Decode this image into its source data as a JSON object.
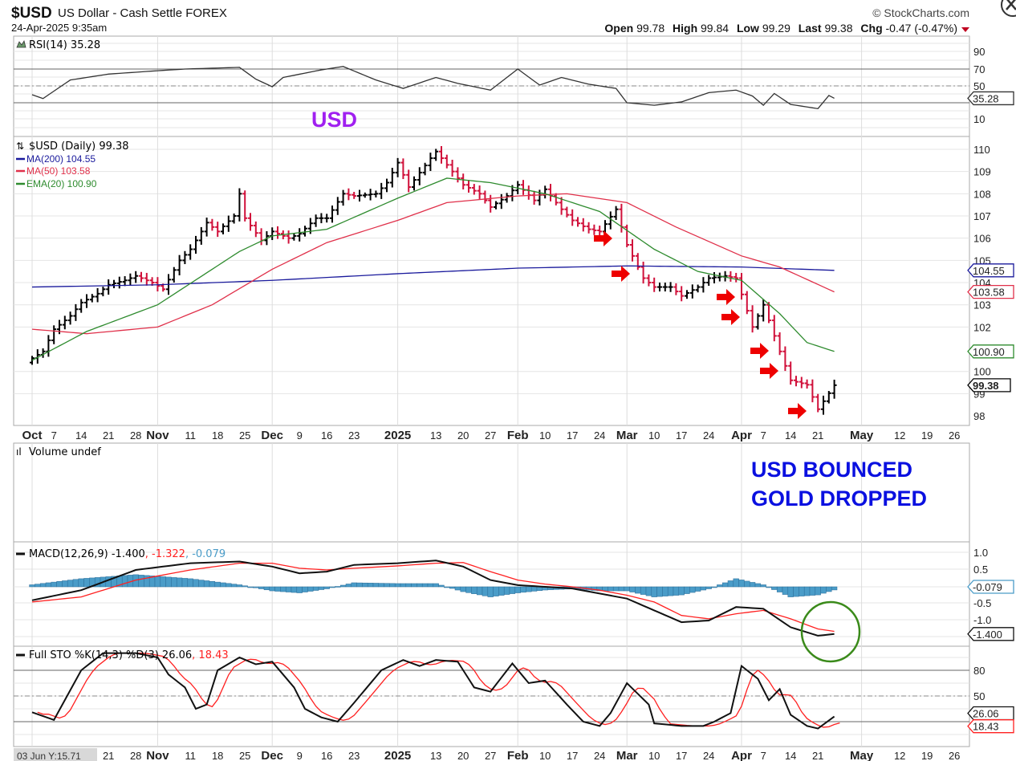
{
  "header": {
    "symbol": "$USD",
    "name": "US Dollar - Cash Settle FOREX",
    "timestamp": "24-Apr-2025 9:35am",
    "copyright": "© StockCharts.com",
    "open_label": "Open",
    "open": "99.78",
    "high_label": "High",
    "high": "99.84",
    "low_label": "Low",
    "low": "99.29",
    "last_label": "Last",
    "last": "99.38",
    "chg_label": "Chg",
    "chg": "-0.47 (-0.47%)",
    "chg_icon": "down-triangle-icon"
  },
  "colors": {
    "up": "#000000",
    "down": "#d0103a",
    "ma200": "#1a1a9c",
    "ma50": "#e0304a",
    "ema20": "#2e8b2e",
    "hist": "#4a9cc8",
    "signal": "#ff2020",
    "rsi_fill_hi": "#6a9a6a",
    "rsi_fill_lo": "#a06060",
    "annot_purple": "#a020f0",
    "annot_blue": "#0a10e0",
    "arrow": "#ee0000",
    "circle": "#3a8a1a"
  },
  "annotations": {
    "usd": "USD",
    "line1": "USD BOUNCED",
    "line2": "GOLD DROPPED"
  },
  "tooltip": "03 Jun Y:15.71",
  "chart_data": [
    {
      "type": "line",
      "title": "RSI(14) 35.28",
      "legend": "RSI(14) 35.28",
      "ylim": [
        0,
        100
      ],
      "yticks": [
        "90",
        "70",
        "50",
        "10"
      ],
      "last_badge": "35.28",
      "points": [
        [
          "2024-10-01",
          39.5
        ],
        [
          "2024-10-03",
          35
        ],
        [
          "2024-10-10",
          57
        ],
        [
          "2024-10-21",
          64
        ],
        [
          "2024-11-01",
          68
        ],
        [
          "2024-11-08",
          70
        ],
        [
          "2024-11-22",
          72
        ],
        [
          "2024-11-27",
          58
        ],
        [
          "2024-12-02",
          49
        ],
        [
          "2024-12-04",
          60
        ],
        [
          "2024-12-13",
          69
        ],
        [
          "2024-12-19",
          73
        ],
        [
          "2024-12-27",
          57
        ],
        [
          "2025-01-03",
          47
        ],
        [
          "2025-01-13",
          60
        ],
        [
          "2025-01-17",
          53
        ],
        [
          "2025-01-27",
          45
        ],
        [
          "2025-02-03",
          70
        ],
        [
          "2025-02-07",
          51
        ],
        [
          "2025-02-13",
          60
        ],
        [
          "2025-02-20",
          52
        ],
        [
          "2025-02-27",
          47
        ],
        [
          "2025-03-03",
          30
        ],
        [
          "2025-03-10",
          27
        ],
        [
          "2025-03-17",
          31
        ],
        [
          "2025-03-24",
          42
        ],
        [
          "2025-03-31",
          45
        ],
        [
          "2025-04-03",
          38
        ],
        [
          "2025-04-07",
          27
        ],
        [
          "2025-04-09",
          41
        ],
        [
          "2025-04-14",
          28
        ],
        [
          "2025-04-21",
          23
        ],
        [
          "2025-04-23",
          38.6
        ],
        [
          "2025-04-24",
          35.28
        ]
      ]
    },
    {
      "type": "ohlc",
      "title": "$USD (Daily) 99.38",
      "legend": [
        "MA(200) 104.55",
        "MA(50) 103.58",
        "EMA(20) 100.90"
      ],
      "ylim": [
        97.6,
        110.5
      ],
      "yticks": [
        "110",
        "109",
        "108",
        "107",
        "106",
        "105",
        "104",
        "103",
        "102",
        "100",
        "99",
        "98"
      ],
      "badges": {
        "ma200": "104.55",
        "ma50": "103.58",
        "ema20": "100.90",
        "last": "99.38"
      },
      "close": [
        [
          "2024-10-01",
          100.6
        ],
        [
          "2024-10-03",
          100.9
        ],
        [
          "2024-10-07",
          101.9
        ],
        [
          "2024-10-10",
          102.5
        ],
        [
          "2024-10-14",
          103.1
        ],
        [
          "2024-10-17",
          103.5
        ],
        [
          "2024-10-21",
          103.9
        ],
        [
          "2024-10-24",
          104.1
        ],
        [
          "2024-10-28",
          104.3
        ],
        [
          "2024-10-31",
          104.0
        ],
        [
          "2024-11-04",
          103.7
        ],
        [
          "2024-11-07",
          105.0
        ],
        [
          "2024-11-11",
          105.5
        ],
        [
          "2024-11-14",
          106.7
        ],
        [
          "2024-11-18",
          106.3
        ],
        [
          "2024-11-21",
          107.0
        ],
        [
          "2024-11-22",
          108.0
        ],
        [
          "2024-11-25",
          106.9
        ],
        [
          "2024-11-28",
          105.9
        ],
        [
          "2024-12-02",
          106.3
        ],
        [
          "2024-12-05",
          106.0
        ],
        [
          "2024-12-09",
          106.2
        ],
        [
          "2024-12-12",
          106.9
        ],
        [
          "2024-12-16",
          106.9
        ],
        [
          "2024-12-19",
          108.0
        ],
        [
          "2024-12-23",
          107.9
        ],
        [
          "2024-12-27",
          108.0
        ],
        [
          "2024-12-31",
          108.5
        ],
        [
          "2025-01-02",
          109.4
        ],
        [
          "2025-01-06",
          108.3
        ],
        [
          "2025-01-10",
          109.6
        ],
        [
          "2025-01-13",
          109.9
        ],
        [
          "2025-01-16",
          109.0
        ],
        [
          "2025-01-20",
          108.4
        ],
        [
          "2025-01-23",
          108.0
        ],
        [
          "2025-01-27",
          107.4
        ],
        [
          "2025-01-30",
          107.9
        ],
        [
          "2025-02-03",
          108.4
        ],
        [
          "2025-02-06",
          107.7
        ],
        [
          "2025-02-10",
          108.2
        ],
        [
          "2025-02-13",
          107.3
        ],
        [
          "2025-02-17",
          106.8
        ],
        [
          "2025-02-20",
          106.4
        ],
        [
          "2025-02-24",
          106.3
        ],
        [
          "2025-02-27",
          107.3
        ],
        [
          "2025-03-03",
          105.7
        ],
        [
          "2025-03-06",
          104.2
        ],
        [
          "2025-03-10",
          103.8
        ],
        [
          "2025-03-13",
          103.8
        ],
        [
          "2025-03-17",
          103.4
        ],
        [
          "2025-03-20",
          103.8
        ],
        [
          "2025-03-24",
          104.2
        ],
        [
          "2025-03-27",
          104.3
        ],
        [
          "2025-03-31",
          104.2
        ],
        [
          "2025-04-03",
          102.0
        ],
        [
          "2025-04-07",
          103.0
        ],
        [
          "2025-04-10",
          100.9
        ],
        [
          "2025-04-14",
          99.6
        ],
        [
          "2025-04-17",
          99.4
        ],
        [
          "2025-04-21",
          98.3
        ],
        [
          "2025-04-24",
          99.38
        ]
      ],
      "ma200": [
        [
          "2024-10-01",
          103.8
        ],
        [
          "2024-11-01",
          103.9
        ],
        [
          "2024-12-02",
          104.1
        ],
        [
          "2025-01-02",
          104.4
        ],
        [
          "2025-02-03",
          104.65
        ],
        [
          "2025-03-03",
          104.75
        ],
        [
          "2025-04-01",
          104.7
        ],
        [
          "2025-04-24",
          104.55
        ]
      ],
      "ma50": [
        [
          "2024-10-01",
          101.9
        ],
        [
          "2024-10-15",
          101.7
        ],
        [
          "2024-11-01",
          102.0
        ],
        [
          "2024-11-15",
          103.0
        ],
        [
          "2024-12-02",
          104.6
        ],
        [
          "2024-12-16",
          105.8
        ],
        [
          "2025-01-02",
          106.8
        ],
        [
          "2025-01-15",
          107.6
        ],
        [
          "2025-02-03",
          107.9
        ],
        [
          "2025-02-14",
          108.0
        ],
        [
          "2025-03-03",
          107.6
        ],
        [
          "2025-03-14",
          106.5
        ],
        [
          "2025-04-01",
          105.2
        ],
        [
          "2025-04-10",
          104.7
        ],
        [
          "2025-04-24",
          103.58
        ]
      ],
      "ema20": [
        [
          "2024-10-01",
          100.5
        ],
        [
          "2024-10-15",
          101.8
        ],
        [
          "2024-11-01",
          103.0
        ],
        [
          "2024-11-08",
          103.8
        ],
        [
          "2024-11-22",
          105.4
        ],
        [
          "2024-12-02",
          106.1
        ],
        [
          "2024-12-16",
          106.4
        ],
        [
          "2025-01-02",
          107.8
        ],
        [
          "2025-01-15",
          108.7
        ],
        [
          "2025-01-27",
          108.5
        ],
        [
          "2025-02-10",
          108.0
        ],
        [
          "2025-02-24",
          107.2
        ],
        [
          "2025-03-10",
          105.5
        ],
        [
          "2025-03-20",
          104.5
        ],
        [
          "2025-04-01",
          104.1
        ],
        [
          "2025-04-10",
          102.6
        ],
        [
          "2025-04-17",
          101.3
        ],
        [
          "2025-04-24",
          100.9
        ]
      ]
    },
    {
      "type": "bar",
      "title": "Volume undef",
      "legend": "Volume undef"
    },
    {
      "type": "line",
      "title": "MACD(12,26,9)",
      "legend": [
        "MACD(12,26,9) -1.400",
        ", -1.322",
        ", -0.079"
      ],
      "ylim": [
        -1.6,
        1.2
      ],
      "yticks": [
        "1.0",
        "0.5",
        "-0.5",
        "-1.0"
      ],
      "badges": {
        "hist": "-0.079",
        "macd": "-1.400"
      },
      "macd": [
        [
          "2024-10-01",
          -0.4
        ],
        [
          "2024-10-14",
          -0.1
        ],
        [
          "2024-10-28",
          0.5
        ],
        [
          "2024-11-11",
          0.7
        ],
        [
          "2024-11-22",
          0.75
        ],
        [
          "2024-12-02",
          0.6
        ],
        [
          "2024-12-09",
          0.4
        ],
        [
          "2024-12-16",
          0.45
        ],
        [
          "2024-12-23",
          0.65
        ],
        [
          "2025-01-02",
          0.7
        ],
        [
          "2025-01-13",
          0.78
        ],
        [
          "2025-01-20",
          0.6
        ],
        [
          "2025-01-27",
          0.2
        ],
        [
          "2025-02-03",
          0.05
        ],
        [
          "2025-02-10",
          0.0
        ],
        [
          "2025-02-17",
          -0.05
        ],
        [
          "2025-02-24",
          -0.2
        ],
        [
          "2025-03-03",
          -0.35
        ],
        [
          "2025-03-10",
          -0.7
        ],
        [
          "2025-03-17",
          -1.05
        ],
        [
          "2025-03-24",
          -1.0
        ],
        [
          "2025-03-31",
          -0.6
        ],
        [
          "2025-04-07",
          -0.65
        ],
        [
          "2025-04-14",
          -1.2
        ],
        [
          "2025-04-21",
          -1.45
        ],
        [
          "2025-04-24",
          -1.4
        ]
      ],
      "signal": [
        [
          "2024-10-01",
          -0.45
        ],
        [
          "2024-10-14",
          -0.3
        ],
        [
          "2024-10-28",
          0.2
        ],
        [
          "2024-11-11",
          0.5
        ],
        [
          "2024-11-22",
          0.7
        ],
        [
          "2024-12-02",
          0.7
        ],
        [
          "2024-12-09",
          0.55
        ],
        [
          "2024-12-16",
          0.5
        ],
        [
          "2024-12-23",
          0.55
        ],
        [
          "2025-01-02",
          0.62
        ],
        [
          "2025-01-13",
          0.7
        ],
        [
          "2025-01-20",
          0.72
        ],
        [
          "2025-01-27",
          0.45
        ],
        [
          "2025-02-03",
          0.2
        ],
        [
          "2025-02-10",
          0.08
        ],
        [
          "2025-02-17",
          0.0
        ],
        [
          "2025-02-24",
          -0.1
        ],
        [
          "2025-03-03",
          -0.25
        ],
        [
          "2025-03-10",
          -0.45
        ],
        [
          "2025-03-17",
          -0.85
        ],
        [
          "2025-03-24",
          -0.95
        ],
        [
          "2025-03-31",
          -0.8
        ],
        [
          "2025-04-07",
          -0.7
        ],
        [
          "2025-04-14",
          -0.95
        ],
        [
          "2025-04-21",
          -1.25
        ],
        [
          "2025-04-24",
          -1.322
        ]
      ]
    },
    {
      "type": "line",
      "title": "Full STO %K(14,3) %D(3)",
      "legend": [
        "Full STO %K(14,3) %D(3) 26.06",
        ", 18.43"
      ],
      "ylim": [
        0,
        100
      ],
      "yticks": [
        "80",
        "50"
      ],
      "badges": {
        "k": "26.06",
        "d": "18.43"
      },
      "k": [
        [
          "2024-10-01",
          31
        ],
        [
          "2024-10-07",
          22
        ],
        [
          "2024-10-14",
          80
        ],
        [
          "2024-10-18",
          100
        ],
        [
          "2024-10-28",
          100
        ],
        [
          "2024-11-01",
          95
        ],
        [
          "2024-11-05",
          75
        ],
        [
          "2024-11-08",
          60
        ],
        [
          "2024-11-12",
          35
        ],
        [
          "2024-11-14",
          40
        ],
        [
          "2024-11-18",
          80
        ],
        [
          "2024-11-22",
          95
        ],
        [
          "2024-11-27",
          87
        ],
        [
          "2024-12-02",
          90
        ],
        [
          "2024-12-06",
          60
        ],
        [
          "2024-12-10",
          35
        ],
        [
          "2024-12-13",
          25
        ],
        [
          "2024-12-18",
          20
        ],
        [
          "2024-12-23",
          42
        ],
        [
          "2024-12-30",
          80
        ],
        [
          "2025-01-03",
          92
        ],
        [
          "2025-01-08",
          85
        ],
        [
          "2025-01-13",
          92
        ],
        [
          "2025-01-17",
          90
        ],
        [
          "2025-01-22",
          60
        ],
        [
          "2025-01-27",
          55
        ],
        [
          "2025-01-31",
          88
        ],
        [
          "2025-02-05",
          65
        ],
        [
          "2025-02-10",
          68
        ],
        [
          "2025-02-14",
          40
        ],
        [
          "2025-02-19",
          20
        ],
        [
          "2025-02-24",
          15
        ],
        [
          "2025-02-26",
          30
        ],
        [
          "2025-03-03",
          65
        ],
        [
          "2025-03-07",
          40
        ],
        [
          "2025-03-10",
          18
        ],
        [
          "2025-03-17",
          15
        ],
        [
          "2025-03-21",
          15
        ],
        [
          "2025-03-25",
          20
        ],
        [
          "2025-03-28",
          30
        ],
        [
          "2025-04-01",
          85
        ],
        [
          "2025-04-04",
          70
        ],
        [
          "2025-04-08",
          45
        ],
        [
          "2025-04-10",
          58
        ],
        [
          "2025-04-14",
          28
        ],
        [
          "2025-04-17",
          15
        ],
        [
          "2025-04-21",
          12
        ],
        [
          "2025-04-24",
          26.06
        ]
      ]
    }
  ],
  "x_axis": [
    {
      "label": "Oct",
      "date": "2024-10-01",
      "bold": true
    },
    {
      "label": "7",
      "date": "2024-10-07"
    },
    {
      "label": "14",
      "date": "2024-10-14"
    },
    {
      "label": "21",
      "date": "2024-10-21"
    },
    {
      "label": "28",
      "date": "2024-10-28"
    },
    {
      "label": "Nov",
      "date": "2024-11-01",
      "bold": true
    },
    {
      "label": "11",
      "date": "2024-11-11"
    },
    {
      "label": "18",
      "date": "2024-11-18"
    },
    {
      "label": "25",
      "date": "2024-11-25"
    },
    {
      "label": "Dec",
      "date": "2024-12-02",
      "bold": true
    },
    {
      "label": "9",
      "date": "2024-12-09"
    },
    {
      "label": "16",
      "date": "2024-12-16"
    },
    {
      "label": "23",
      "date": "2024-12-23"
    },
    {
      "label": "2025",
      "date": "2025-01-02",
      "bold": true
    },
    {
      "label": "13",
      "date": "2025-01-13"
    },
    {
      "label": "20",
      "date": "2025-01-20"
    },
    {
      "label": "27",
      "date": "2025-01-27"
    },
    {
      "label": "Feb",
      "date": "2025-02-03",
      "bold": true
    },
    {
      "label": "10",
      "date": "2025-02-10"
    },
    {
      "label": "17",
      "date": "2025-02-17"
    },
    {
      "label": "24",
      "date": "2025-02-24"
    },
    {
      "label": "Mar",
      "date": "2025-03-03",
      "bold": true
    },
    {
      "label": "10",
      "date": "2025-03-10"
    },
    {
      "label": "17",
      "date": "2025-03-17"
    },
    {
      "label": "24",
      "date": "2025-03-24"
    },
    {
      "label": "Apr",
      "date": "2025-04-01",
      "bold": true
    },
    {
      "label": "7",
      "date": "2025-04-07"
    },
    {
      "label": "14",
      "date": "2025-04-14"
    },
    {
      "label": "21",
      "date": "2025-04-21"
    },
    {
      "label": "May",
      "date": "2025-05-01",
      "bold": true
    },
    {
      "label": "12",
      "date": "2025-05-12"
    },
    {
      "label": "19",
      "date": "2025-05-19"
    },
    {
      "label": "26",
      "date": "2025-05-26"
    }
  ]
}
